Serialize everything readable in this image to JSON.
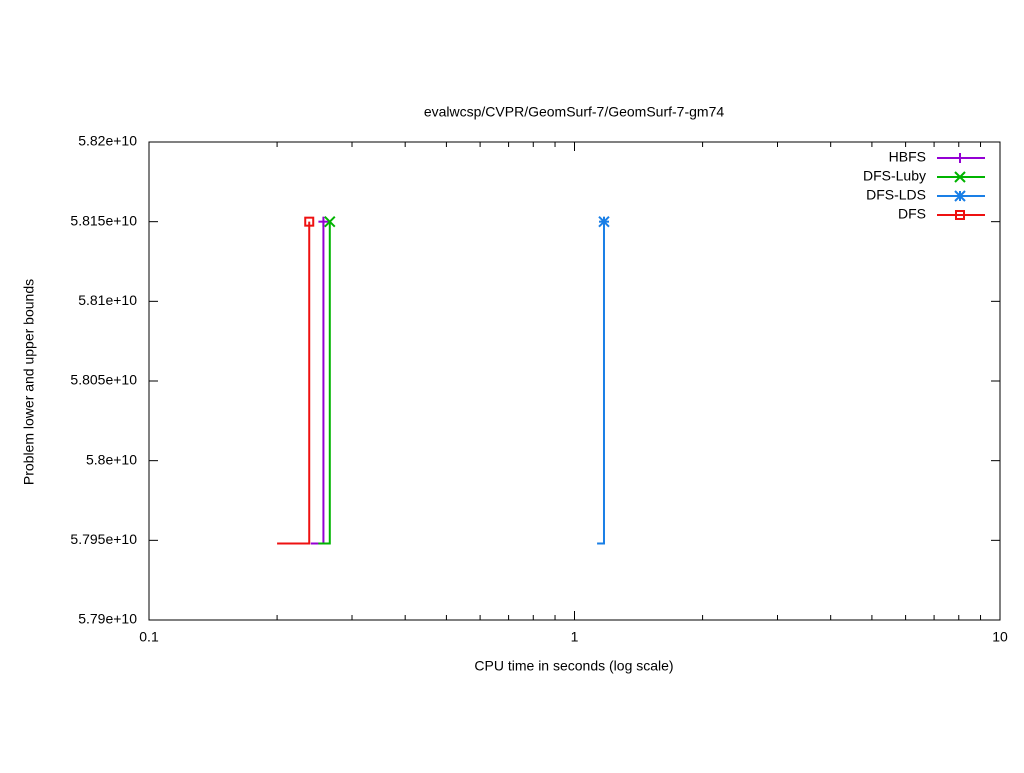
{
  "chart_data": {
    "type": "step",
    "title": "evalwcsp/CVPR/GeomSurf-7/GeomSurf-7-gm74",
    "x_label": "CPU time in seconds (log scale)",
    "y_label": "Problem lower and upper bounds",
    "xlog": true,
    "xlim": [
      0.1,
      10
    ],
    "xticks": [
      0.1,
      1,
      10
    ],
    "ylim": [
      57900000000,
      58200000000
    ],
    "yticks": [
      {
        "value": 57900000000,
        "label": "5.79e+10"
      },
      {
        "value": 57950000000,
        "label": "5.795e+10"
      },
      {
        "value": 58000000000,
        "label": "5.8e+10"
      },
      {
        "value": 58050000000,
        "label": "5.805e+10"
      },
      {
        "value": 58100000000,
        "label": "5.81e+10"
      },
      {
        "value": 58150000000,
        "label": "5.815e+10"
      },
      {
        "value": 58200000000,
        "label": "5.82e+10"
      }
    ],
    "legend": "top right",
    "series": [
      {
        "name": "HBFS",
        "color": "#9400d3",
        "marker": "plus",
        "x": [
          0.24,
          0.257
        ],
        "values": [
          57948000000,
          58150000000
        ]
      },
      {
        "name": "DFS-Luby",
        "color": "#00b400",
        "marker": "cross",
        "x": [
          0.25,
          0.266
        ],
        "values": [
          57948000000,
          58150000000
        ]
      },
      {
        "name": "DFS-LDS",
        "color": "#1a7fe6",
        "marker": "star",
        "x": [
          1.13,
          1.173
        ],
        "values": [
          57948000000,
          58150000000
        ]
      },
      {
        "name": "DFS",
        "color": "#ee1111",
        "marker": "square",
        "x": [
          0.2,
          0.238
        ],
        "values": [
          57948000000,
          58150000000
        ]
      }
    ]
  }
}
